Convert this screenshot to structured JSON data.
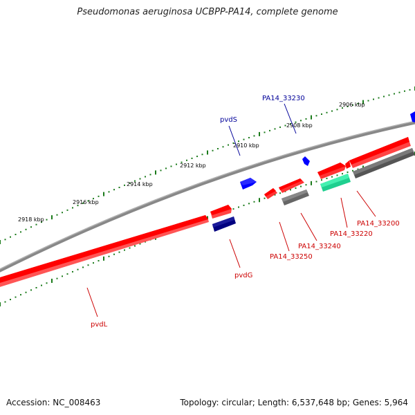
{
  "title": "Pseudomonas aeruginosa UCBPP-PA14, complete genome",
  "footer": {
    "accession": "Accession: NC_008463",
    "summary": "Topology: circular; Length: 6,537,648 bp; Genes: 5,964"
  },
  "ticks": [
    "2918 kbp",
    "2916 kbp",
    "2914 kbp",
    "2912 kbp",
    "2910 kbp",
    "2908 kbp",
    "2906 kbp"
  ],
  "gene_labels": {
    "pvdL": "pvdL",
    "pvdG": "pvdG",
    "pvdS": "pvdS",
    "PA14_33230": "PA14_33230",
    "PA14_33250": "PA14_33250",
    "PA14_33240": "PA14_33240",
    "PA14_33220": "PA14_33220",
    "PA14_33200": "PA14_33200"
  },
  "colors": {
    "backbone": "#777777",
    "cds_forward": "#ff0000",
    "cds_reverse": "#ff0000",
    "cds_shadow": "#555555",
    "rna_blue": "#0000ff",
    "navy": "#00008b",
    "green": "#2ee8a8",
    "tick_green": "#1a7a1a",
    "label_red": "#cc0000",
    "label_blue": "#000099"
  }
}
